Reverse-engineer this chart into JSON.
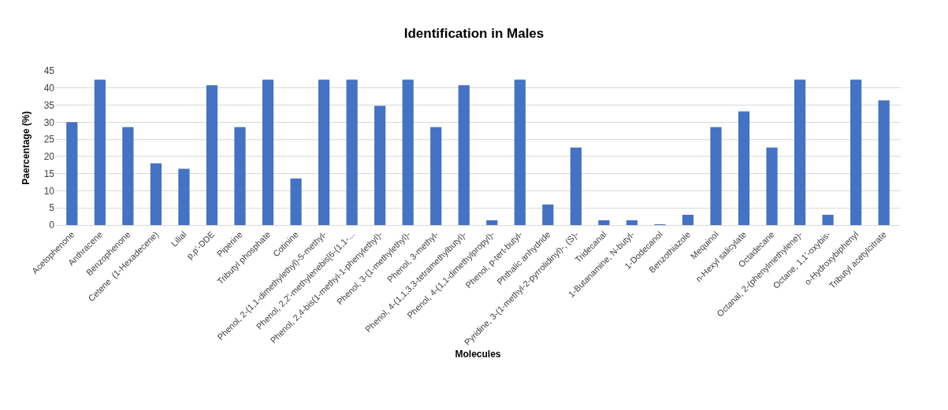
{
  "chart_data": {
    "type": "bar",
    "title": "Identification in Males",
    "xlabel": "Molecules",
    "ylabel": "Paercentage (%)",
    "categories": [
      "Acetophenone",
      "Anthracene",
      "Benzophenone",
      "Cetene  (1-Hexadecene)",
      "Lilial",
      "p,p'-DDE",
      "Piperine",
      "Tributyl phosphate",
      "Cotinine",
      "Phenol, 2-(1,1-dimethylethyl)-5-methyl-",
      "Phenol, 2,2'-methylenebis[6-(1,1-...",
      "Phenol, 2,4-bis(1-methyl-1-phenylethyl)-",
      "Phenol, 3-(1-methylethyl)-",
      "Phenol, 3-methyl-",
      "Phenol, 4-(1,1,3,3-tetramethylbutyl)-",
      "Phenol, 4-(1,1-dimethylpropyl)-",
      "Phenol, p-tert-butyl-",
      "Phthalic anhydride",
      "Pyridine, 3-(1-methyl-2-pyrrolidinyl)-, (S)-",
      "Tridecanal",
      "1-Butanamine, N-butyl-",
      "1-Dodecanol",
      "Benzothiazole",
      "Mequinol",
      "n-Hexyl salicylate",
      "Octadecane",
      "Octanal, 2-(phenylmethylene)-",
      "Octane, 1,1'-oxybis-",
      "o-Hydroxybiphenyl",
      "Tributyl acetylcitrate"
    ],
    "values": [
      30,
      42.4,
      28.6,
      18,
      16.4,
      40.8,
      28.6,
      42.4,
      13.6,
      42.4,
      42.4,
      34.8,
      42.4,
      28.6,
      40.8,
      1.4,
      42.4,
      6,
      22.6,
      1.4,
      1.4,
      0.2,
      3,
      28.6,
      33.2,
      22.6,
      42.4,
      3,
      42.4,
      36.4
    ],
    "color": "#4472c4",
    "ylim": [
      0,
      45
    ],
    "yticks": [
      0,
      5,
      10,
      15,
      20,
      25,
      30,
      35,
      40,
      45
    ],
    "grid": "y"
  }
}
